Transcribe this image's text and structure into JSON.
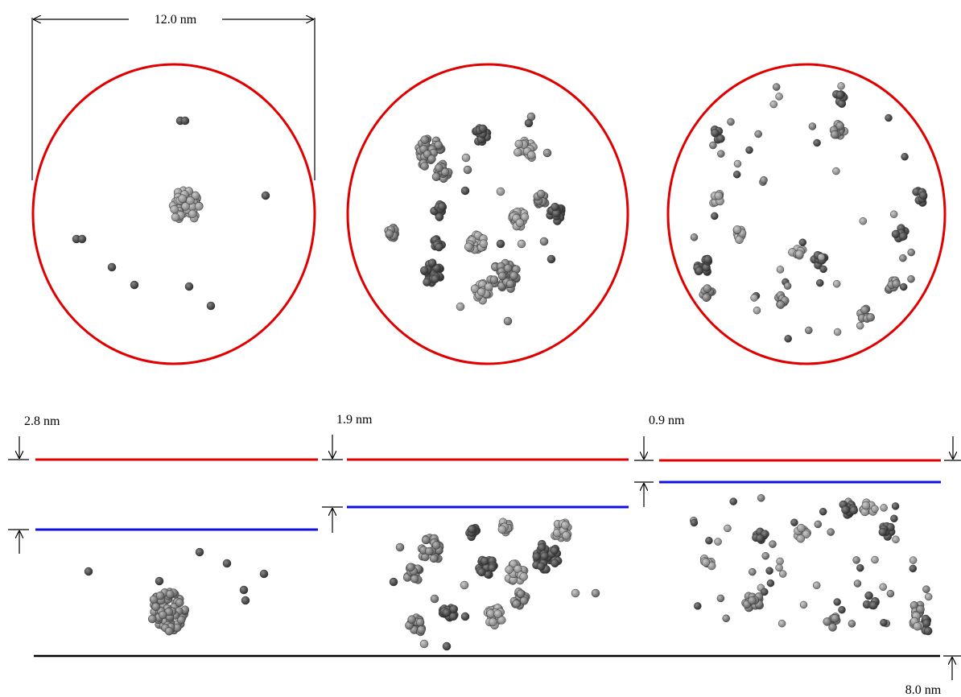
{
  "top": {
    "width_label": "12.0 nm"
  },
  "bottom": {
    "panel_labels": [
      "2.8 nm",
      "1.9 nm",
      "0.9 nm"
    ],
    "depth_label": "8.0 nm"
  }
}
